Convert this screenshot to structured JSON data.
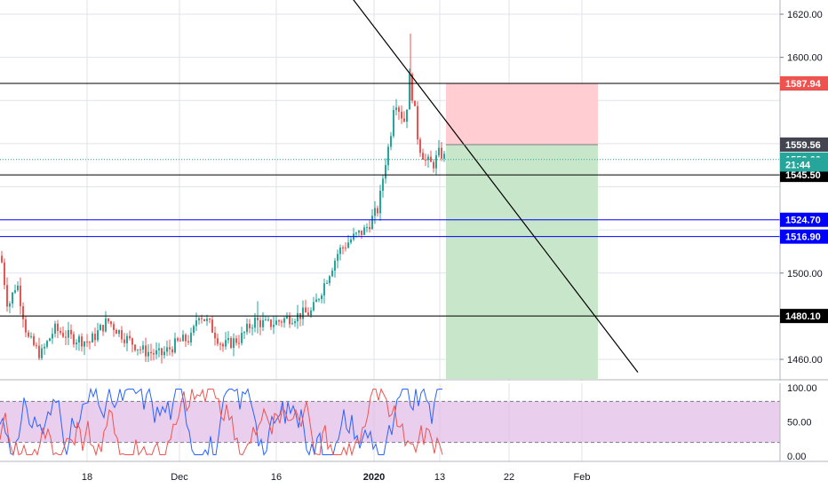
{
  "chart_data": {
    "type": "candlestick",
    "price_axis": {
      "ticks": [
        "1620.00",
        "1600.00",
        "1500.00",
        "1460.00"
      ],
      "tick_values": [
        1620,
        1600,
        1500,
        1460
      ],
      "range": [
        1454,
        1626
      ]
    },
    "time_axis": {
      "ticks": [
        "18",
        "Dec",
        "16",
        "2020",
        "13",
        "22",
        "Feb"
      ]
    },
    "horizontal_levels": [
      {
        "value": 1587.9,
        "label": "1587.90",
        "color": "#000000",
        "badge_bg": "#000000"
      },
      {
        "value": 1545.5,
        "label": "1545.50",
        "color": "#000000",
        "badge_bg": "#000000"
      },
      {
        "value": 1524.7,
        "label": "1524.70",
        "color": "#0000ff",
        "badge_bg": "#0000ff"
      },
      {
        "value": 1516.9,
        "label": "1516.90",
        "color": "#0000ff",
        "badge_bg": "#0000ff"
      },
      {
        "value": 1480.1,
        "label": "1480.10",
        "color": "#000000",
        "badge_bg": "#000000"
      }
    ],
    "price_badges": [
      {
        "value": 1587.94,
        "label": "1587.94",
        "bg": "#ef5350"
      },
      {
        "value": 1559.56,
        "label": "1559.56",
        "bg": "#434651"
      },
      {
        "value": 1552.66,
        "label": "1552.66",
        "bg": "#26a69a"
      },
      {
        "value": 1550.3,
        "label": "21:44",
        "bg": "#26a69a"
      }
    ],
    "current_price": 1552.66,
    "position": {
      "direction": "short",
      "entry": 1559.56,
      "stop": 1587.94,
      "target": 1455,
      "stop_color": "#ffcdd2",
      "target_color": "#c8e6c9"
    },
    "trendline": {
      "from_price": 1646,
      "to_price": 1454
    },
    "oscillator": {
      "ticks": [
        "100.00",
        "50.00",
        "0.00"
      ],
      "tick_values": [
        100,
        50,
        0
      ],
      "upper_band": 80,
      "lower_band": 20,
      "band_color": "#e1bee7",
      "series_colors": [
        "#2962ff",
        "#ef5350"
      ]
    },
    "colors": {
      "up": "#26a69a",
      "down": "#ef5350",
      "grid": "#e0e3eb"
    }
  }
}
